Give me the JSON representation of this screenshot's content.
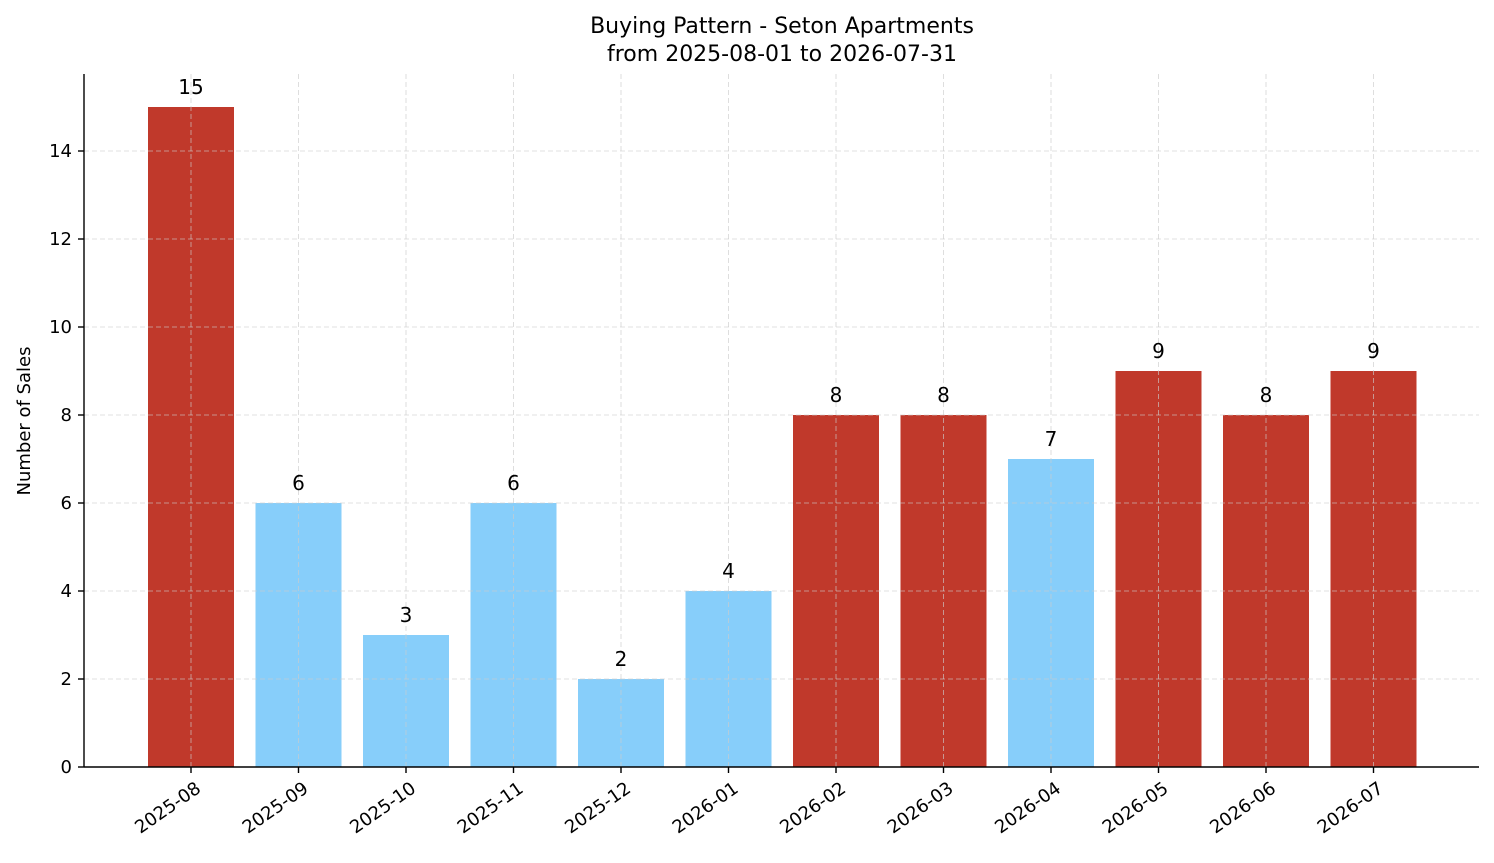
{
  "chart_data": {
    "type": "bar",
    "title": "Buying Pattern - Seton Apartments",
    "subtitle": "from 2025-08-01 to 2026-07-31",
    "xlabel": "",
    "ylabel": "Number of Sales",
    "categories": [
      "2025-08",
      "2025-09",
      "2025-10",
      "2025-11",
      "2025-12",
      "2026-01",
      "2026-02",
      "2026-03",
      "2026-04",
      "2026-05",
      "2026-06",
      "2026-07"
    ],
    "values": [
      15,
      6,
      3,
      6,
      2,
      4,
      8,
      8,
      7,
      9,
      8,
      9
    ],
    "bar_colors": [
      "#c0392b",
      "#87cefa",
      "#87cefa",
      "#87cefa",
      "#87cefa",
      "#87cefa",
      "#c0392b",
      "#c0392b",
      "#87cefa",
      "#c0392b",
      "#c0392b",
      "#c0392b"
    ],
    "ylim": [
      0,
      15.75
    ],
    "yticks": [
      0,
      2,
      4,
      6,
      8,
      10,
      12,
      14
    ],
    "grid": true,
    "legend": "none"
  }
}
